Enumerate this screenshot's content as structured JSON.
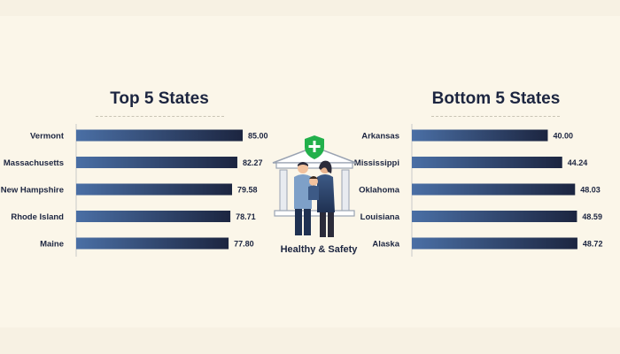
{
  "left_panel": {
    "title": "Top 5 States"
  },
  "right_panel": {
    "title": "Bottom 5 States"
  },
  "center": {
    "caption": "Healthy & Safety",
    "icon": "family-health-shield-icon"
  },
  "colors": {
    "bar_start": "#4a6fa5",
    "bar_end": "#1c2540",
    "accent_shield": "#22b04b"
  },
  "chart_data": [
    {
      "type": "bar",
      "orientation": "horizontal",
      "title": "Top 5 States",
      "categories": [
        "Vermont",
        "Massachusetts",
        "New Hampshire",
        "Rhode Island",
        "Maine"
      ],
      "values": [
        85.0,
        82.27,
        79.58,
        78.71,
        77.8
      ],
      "value_labels": [
        "85.00",
        "82.27",
        "79.58",
        "78.71",
        "77.80"
      ],
      "xlim": [
        0,
        85
      ],
      "grid": false
    },
    {
      "type": "bar",
      "orientation": "horizontal",
      "title": "Bottom 5 States",
      "categories": [
        "Arkansas",
        "Mississippi",
        "Oklahoma",
        "Louisiana",
        "Alaska"
      ],
      "values": [
        40.0,
        44.24,
        48.03,
        48.59,
        48.72
      ],
      "value_labels": [
        "40.00",
        "44.24",
        "48.03",
        "48.59",
        "48.72"
      ],
      "xlim": [
        0,
        49
      ],
      "grid": false
    }
  ]
}
